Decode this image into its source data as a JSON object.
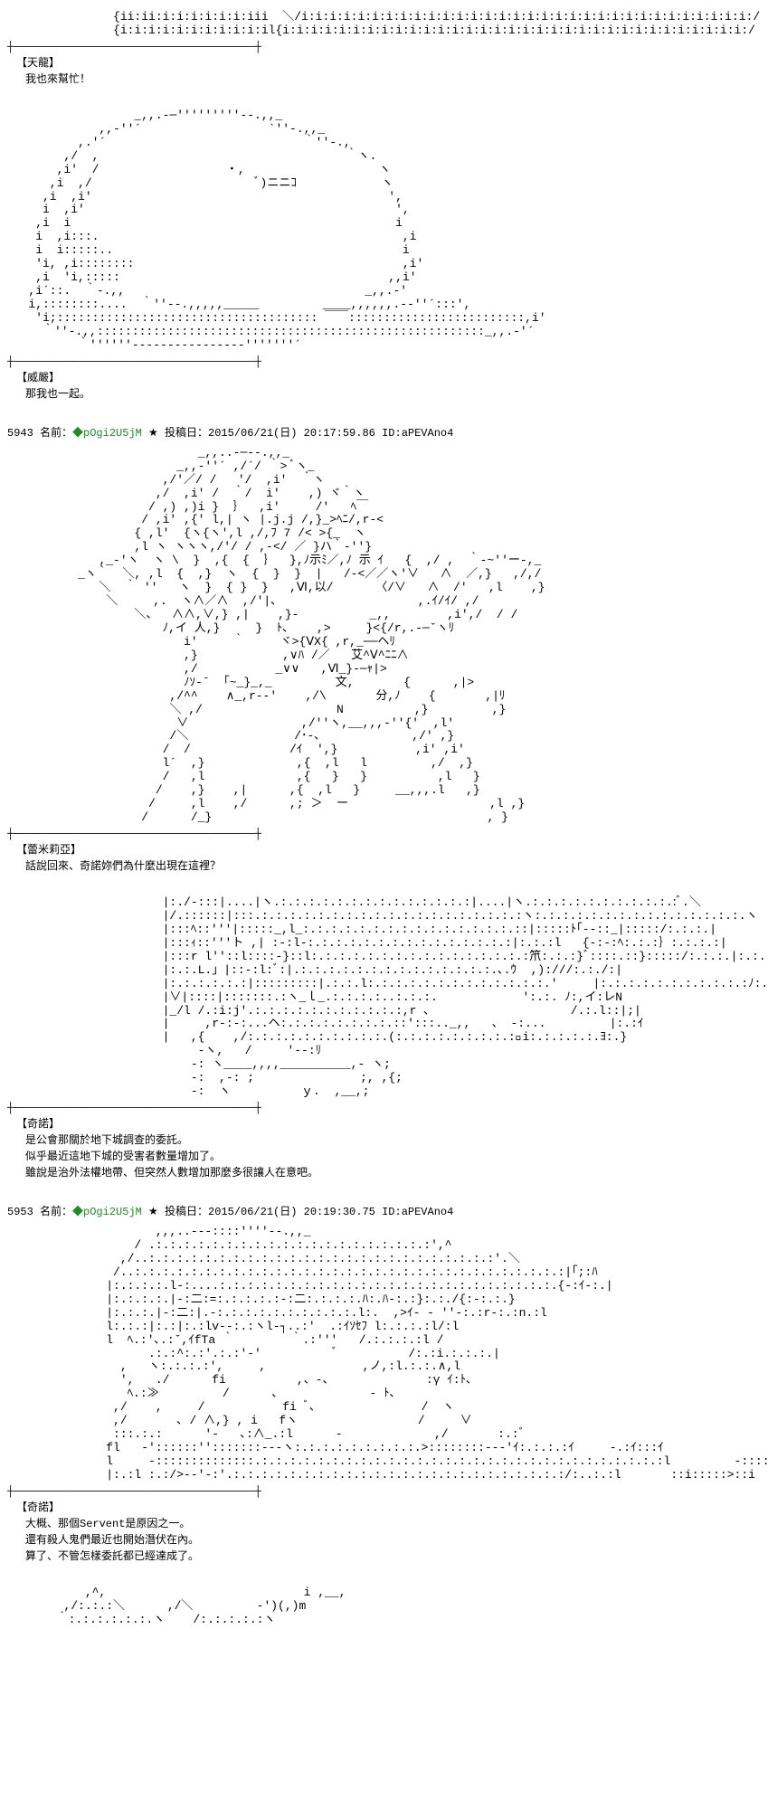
{
  "divider_line": "┼─────────────────────────────────────┼",
  "posts": [
    {
      "ascii_top": "               {ii:ii:i:i:i:i:i:i:iii  ＼/i:i:i:i:i:i:i:i:i:i:i:i:i:i:i:i:i:i:i:i:i:i:i:i:i:i:i:i:i:i:i:i:/\n               {i:i:i:i:i:i:i:i:i:i:il{i:i:i:i:i:i:i:i:i:i:i:i:i:i:i:i:i:i:i:i:i:i:i:i:i:i:i:i:i:i:i:i:i:/",
      "speaker": "【天龍】",
      "dialogue": "我也來幫忙！"
    },
    {
      "ascii": "                  _,,.-─'''''''''‐-.,,_\n             ,,-''´                  `''‐.,,_\n          ,.'´                            ｀''-.,\n        ,/  ,                                   ｀ヽ.\n       ,i'  /                  ・,                   ヽ\n      ,i  ,/                       ﾞ)ニニｺ            ヽ\n     ,i  ,i'                                          ',\n     i  ,i'                                            ',\n    ,i  i                                              i\n    i  ,i:::.                                           ,i\n    i  i:::::..                                         i\n    'i, ,i::::::::                                      ,i'\n    ,i  'i,:::::                                      ,,i'\n   ,i´::.  ｀‐.,,                                  _,,.‐'\n   i,::::::::....  ｀''‐-.,,,,,_____         ____,,,,,,.-‐''´:::',\n    'i;::::::::::::::::::::::::::::::::::::: ￣￣:::::::::::::::::::::::::,i'\n     ｀''-.,,:::::::::::::::::::::::::::::::::::::::::::::::::::::::_,,.‐'´\n          ｀''''''‐‐‐----------‐‐‐'''''''´",
      "speaker": "【威嚴】",
      "dialogue": "那我也一起。"
    },
    {
      "post_no": "5943",
      "name_label": "名前：",
      "trip": "◆pOgi2U5jM",
      "star": "★",
      "date_label": "投稿日：",
      "date": "2015/06/21(日) 20:17:59.86",
      "id_label": "ID:",
      "id": "aPEVAno4",
      "ascii": "                           _,,..-─-‐.,,_\n                        _,,‐''´ ,/´/ ｀> ﾞヽ_\n                      ,/'／/ /   '/  ,i'  ｀ヽ\n                     ,/  ,i' /  ｀/  i'    ,) ヾ｀ヽ\n                    / ,) ,)i }  ｝  ,i'     /'   ﾍ￣\n                   / ,i' ,{' l,| ヽ |.j.j /,}_>ﾍﾆ/,r‐<\n                  { ,l'  {ヽ{ヽ',l ,/,ﾌ 7 /< >{_  ヽ\n                  ,l ヽ ヽヽヽ,/'/ / ,-</ ／ }ハ｀-''}\n             ,_‐'ヽ  ヽ \\  }  ,{  {  ｝  },ﾉ示ﾐ／,ﾉ 示 ｲ   {  ,/ ,  ｀‐~''ー‐,_\n          _ヽ｀  ＼, ,l  {  ,}  ヽ  {  }  }  |   /‐<／／ヽ'∨   ∧  ／,}   ,/,/\n             ＼  ｀ ''   ヽ  }  { }  }   ,Ⅵ,以/      〈/∨   ∧  /'   ,l    ,}\n              ＼     ,.  ヽ∧／∧  ,/'|､                    ,.ｲ/ｲ/ ,/\n                  ＼、  ∧∧,∨,} ,|    ,}‐          _,,        ,i',/  / /\n                      ﾉ,イ 人,}     }  ﾄ､    ,>     }<{/r,.-─ˇヽﾘ\n                         i'     ｀     ヾ>{ⅤX{ ,r,_──ヘﾘ\n                         ,}            ,∨ﾊ /／   艾^Ⅴ^ﾆﾆ∧\n                         ,/           _∨∨   ,Ⅵ_}‐─ｬ|>\n                         ﾉｿ‐ˉ  ｢~_}_,_         文,       {      ,|>\n                       ,/^^    ∧_,r‐‐'    ,/\\       分,ﾉ    {       ,|ﾘ\n                       ＼ ,/                   N          ,}         ,}\n                        ∨                ,/''ヽ,__,,,‐''{'  ,l'\n                       /＼               /･‐､             ,/' ,}\n                      /  /              /ｲ  ',}           ,i' ,i'\n                      l´  ,}             ,{  ,l   l         ,/  ,}\n                      /   ,l             ,{   }   }          ,l   }\n                     /    ,}    ,|      ,{  ,l   }     __,,,.l   ,}\n                    /     ,l    ,/      ,; ＞  ー                    ,l ,}\n                   /      /_}                                       , }",
      "speaker": "【蕾米莉亞】",
      "dialogue": "話說回來、奇諾妳們為什麼出現在這裡？"
    },
    {
      "ascii": "                      |:./‐:::|....|ヽ.:.:.:.:.:.:.:.:.:.:.:.:.:.:|....|ヽ.:.:.:.:.:.:.:.:.:.:.:ﾞ.＼\n                      |/.::::::|:::.:.:.:.:.:.:.:.:.:.:.:.:.:.:.:.:.:.:.:ヽ:.:.:.:.:.:.:.:.:.:.:.:.:.:.:.ヽ\n                      |:::ﾍ::'''|:::::_,l_:.:.:.:.:.:.:.:.:.:.:.:.:.:.:.::|:::::ﾄ｢‐-::_|:::::/:.:.:.|\n                      |:::ｨ::'''ト ,| :‐:l‐:.:.:.:.:.:.:.:.:.:.:.:.:.:.:|:.:.:l   {‐:‐:ﾍ:.:.:｝:.:.:.:|\n                      |:::r l''::l::::‐}::l:.:.:.:.:.:.:.:.:.:.:.:.:.:.:.:笊:.:.:}ﾞ::::.::}:::::/:.:.:.|:.:.|\n                      |:.:.L.」|::‐:l:ﾞ:|.:.:.:.:.:.:.:.:.:.:.:.:.:.:.､.ｳ  ,):///:.:./:|\n                      |:.:.:.:.:.:|:::::::::|.:.:.l:.:.:.:.:.:.:.:.:.:.:.:.:.'     |:.:.:.:.:.:.:.:.:.:.:ﾉ:.'|\n                      |∨|::::|:::::::.:ヽ_ｌ_.:.:.:.:..:.:.:.            ':.:. ﾉ:,イ:レN\n                      |_/l /.:i:j'.:.:.:.:.:.:.:.:.:.:.:,r ､                    /.:.l::|;|\n                      |     ,r‐:‐:...ヘ:.:.:.:.:.:.:.:.::':::.._,,   、 ‐:...         |:.:ｲ\n                      |   ,{    ,/:.:.:.:.:.:.:.:.:.:.(:.:.:.:.:.:.:.:.:ﾞi:.:.:.:.:.ﾖ:.}\n                           ‐ヽ,   /     '‐‐:ﾘ\n                          ‐: ヽ____,,,,__________,‐ ヽ;\n                          ‐:  ,-: ;               ;, ,{;\n                          ‐:  ヽ          ｙ.  ,__,;",
      "speaker": "【奇諾】",
      "dialogue": "是公會那關於地下城調查的委託。\n似乎最近這地下城的受害者數量增加了。\n雖說是治外法權地帶、但突然人數增加那麼多很讓人在意吧。"
    },
    {
      "post_no": "5953",
      "name_label": "名前：",
      "trip": "◆pOgi2U5jM",
      "star": "★",
      "date_label": "投稿日：",
      "date": "2015/06/21(日) 20:19:30.75",
      "id_label": "ID:",
      "id": "aPEVAno4",
      "ascii": "                     ,,,..-‐‐::::''''‐‐.,,_\n                  / .:.:.:.:.:.:.:.:.:.:.:.:.:.:.:.:.:.:.:.:',^\n                ,/..:.:.:.:.:.:.:.:.:.:.:.:.:.:.:.:.:.:.:.:.:.:.:.:.:'.＼\n               /..:.:.:.:.:.:.:.:.:.:.:.:.:.:.:.:.:.:.:.:.:.:.:.:.:.:.:.:.:.:.:|｢;:ﾊ\n              |:.:.:.:.l‐:....:.:.:.:.:.:.:.:.:.:.:.:.:.:.:.:.:.:.:.:.:.:.:.:.{‐:ｲ‐:.|\n              |:.:.:.:.|‐:二:=:.:.:.:.:‐:二:.:.:.:.ﾊ:.ﾊ‐:.:}:.:./{:‐:.:.}\n              |:.:.:.|‐:二:|.‐:.:.:.:.:.:.:.:.:.:.l:.  ,>ｲ‐ ‐ ''‐:.:r‐:.:n.:l\n              l:.:.:|:.:|:.:lv‐‐:.:ヽl‐┐..:'  .:ｲｿｾﾌ l:.:.:.:l/:l\n              l  ﾍ.:'､.:ˇ,ｲfTa ｀        ｀.:'''   /.:.:.:.:l /\n                    .:.:^:.:'.:.:'‐'          ﾞ          /:.:i.:.:.:.|\n                ,   ヽ:.:.:.:',     ,          　  ,ノ,:l.:.:.∧,l\n                ',   ./      fi          ,、‐、             :γ ｲ:ﾄ､\n                 ﾍ.:≫         /      ､             ‐ ﾄ､\n               ,/    ,     /           fi ﾞ､               /  ヽ\n               ,/       ､ / ∧,} , i   fヽ                 /     ∨\n               :::.:.:      '‐   ､:∧_.:l      ‐             ,/       :.:ﾞ\n              fl   ‐'::::::'':::::::‐‐‐ヽ:.:.:.:.:.:.:.:.:.>::::::::‐‐‐'ｲ:.:.:.:ｲ     ‐.:ｲ:::ｲ\n              l     ‐::::::::::::::.:.:.:.:.:.:.:.:.:.:.:.:.:.:.:.:.:.:.:.:.:.:.:.:.:.:.:.:.:l         ‐::::::::::::|\n              |:.:l :.:/>‐‐'‐:'.:.:.:.:.:.:.:.:.:.:.:.:.:.:.:.:.:.:.:.:.:.:.:.:/:..:.:l       ::i:::::>::i",
      "speaker": "【奇諾】",
      "dialogue": "大概、那個Servent是原因之一。\n還有殺人鬼們最近也開始潛伏在內。\n算了、不管怎樣委託都已經達成了。"
    },
    {
      "ascii_bottom": "           ,^,                            i ,__,\n        ,/:.:.:＼      ,/＼         ‐')(,)m\n       ｀:.:.:.:.:.:.ヽ    /:.:.:.:.:ヽ"
    }
  ]
}
